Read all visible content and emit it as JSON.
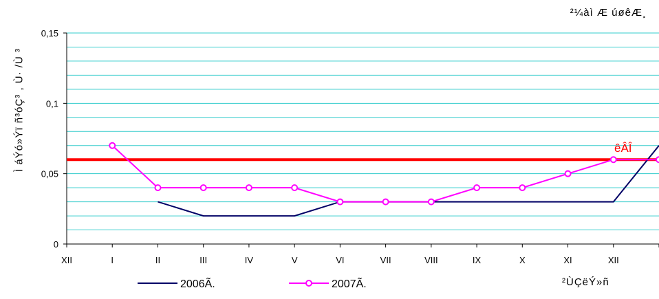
{
  "header": {
    "note": "²¼àì Æ úøêÆ¸"
  },
  "x_unit_label": "²ÙÇëÝ»ñ",
  "chart_data": {
    "type": "line",
    "ylabel": "Ì áÝó»Ýï ñ³óÇ³ , Ù· /Ù ³",
    "categories": [
      "XII",
      "I",
      "II",
      "III",
      "IV",
      "V",
      "VI",
      "VII",
      "VIII",
      "IX",
      "X",
      "XI",
      "XII"
    ],
    "ylim": [
      0,
      0.15
    ],
    "y_ticks": [
      0,
      0.05,
      0.1,
      0.15
    ],
    "y_tick_labels": [
      "0",
      "0,05",
      "0,1",
      "0,15"
    ],
    "grid": true,
    "legend_position": "bottom",
    "series": [
      {
        "name": "2006Ã.",
        "color": "#000066",
        "values": [
          null,
          0.03,
          0.02,
          0.02,
          0.02,
          0.03,
          0.03,
          0.03,
          0.03,
          0.03,
          0.03,
          0.03,
          0.07
        ],
        "markers": false
      },
      {
        "name": "2007Ã.",
        "color": "#ff00ff",
        "values": [
          0.07,
          0.04,
          0.04,
          0.04,
          0.04,
          0.03,
          0.03,
          0.03,
          0.04,
          0.04,
          0.05,
          0.06,
          0.06
        ],
        "markers": true
      }
    ],
    "reference_line": {
      "label": "êÂÎ",
      "value": 0.06,
      "color": "#ff0000"
    }
  }
}
